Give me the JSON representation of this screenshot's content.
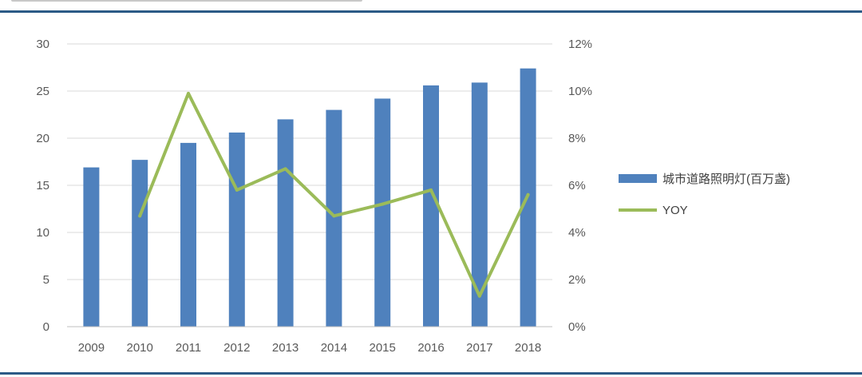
{
  "colors": {
    "bar": "#4f81bd",
    "line": "#9bbb59",
    "rule": "#2c5a86",
    "grid": "#d9d9d9",
    "axis": "#bfbfbf"
  },
  "chart_data": {
    "type": "bar",
    "categories": [
      "2009",
      "2010",
      "2011",
      "2012",
      "2013",
      "2014",
      "2015",
      "2016",
      "2017",
      "2018"
    ],
    "series": [
      {
        "name": "城市道路照明灯(百万盏)",
        "type": "bar",
        "axis": "left",
        "values": [
          16.9,
          17.7,
          19.5,
          20.6,
          22.0,
          23.0,
          24.2,
          25.6,
          25.9,
          27.4
        ]
      },
      {
        "name": "YOY",
        "type": "line",
        "axis": "right",
        "values": [
          null,
          0.047,
          0.099,
          0.058,
          0.067,
          0.047,
          0.052,
          0.058,
          0.013,
          0.056
        ]
      }
    ],
    "y_left": {
      "min": 0,
      "max": 30,
      "ticks": [
        "0",
        "5",
        "10",
        "15",
        "20",
        "25",
        "30"
      ]
    },
    "y_right": {
      "min": 0,
      "max": 0.12,
      "ticks": [
        "0%",
        "2%",
        "4%",
        "6%",
        "8%",
        "10%",
        "12%"
      ]
    },
    "grid": true,
    "legend_position": "right"
  }
}
